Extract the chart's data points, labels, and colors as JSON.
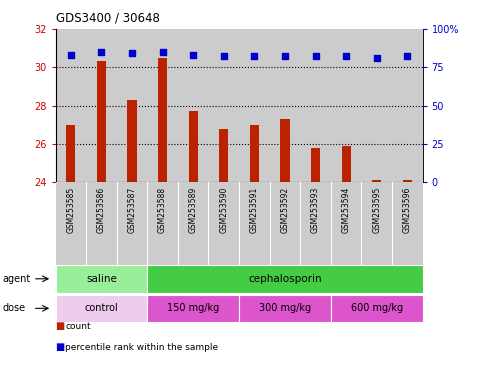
{
  "title": "GDS3400 / 30648",
  "samples": [
    "GSM253585",
    "GSM253586",
    "GSM253587",
    "GSM253588",
    "GSM253589",
    "GSM253590",
    "GSM253591",
    "GSM253592",
    "GSM253593",
    "GSM253594",
    "GSM253595",
    "GSM253596"
  ],
  "count_values": [
    27.0,
    30.3,
    28.3,
    30.5,
    27.7,
    26.8,
    27.0,
    27.3,
    25.8,
    25.9,
    24.1,
    24.1
  ],
  "percentile_values": [
    83,
    85,
    84,
    85,
    83,
    82,
    82,
    82,
    82,
    82,
    81,
    82
  ],
  "ylim_left": [
    24,
    32
  ],
  "ylim_right": [
    0,
    100
  ],
  "yticks_left": [
    24,
    26,
    28,
    30,
    32
  ],
  "yticks_right": [
    0,
    25,
    50,
    75,
    100
  ],
  "bar_color": "#bb2200",
  "dot_color": "#0000cc",
  "agent_groups": [
    {
      "label": "saline",
      "start": 0,
      "end": 3,
      "color": "#99ee99"
    },
    {
      "label": "cephalosporin",
      "start": 3,
      "end": 12,
      "color": "#44cc44"
    }
  ],
  "dose_groups": [
    {
      "label": "control",
      "start": 0,
      "end": 3,
      "color": "#eeccee"
    },
    {
      "label": "150 mg/kg",
      "start": 3,
      "end": 6,
      "color": "#dd55cc"
    },
    {
      "label": "300 mg/kg",
      "start": 6,
      "end": 9,
      "color": "#dd55cc"
    },
    {
      "label": "600 mg/kg",
      "start": 9,
      "end": 12,
      "color": "#dd55cc"
    }
  ],
  "tick_label_color_left": "#cc0000",
  "tick_label_color_right": "#0000cc",
  "background_color": "#ffffff",
  "col_bg_color": "#cccccc"
}
